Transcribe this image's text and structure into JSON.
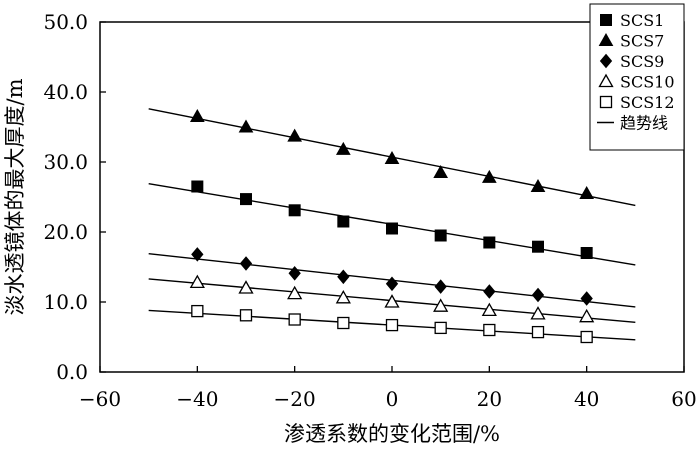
{
  "chart_data": {
    "type": "scatter",
    "xlabel": "渗透系数的变化范围/%",
    "ylabel": "淡水透镜体的最大厚度/m",
    "xlim": [
      -60,
      60
    ],
    "ylim": [
      0,
      50
    ],
    "x_ticks": [
      "−60",
      "−40",
      "−20",
      "0",
      "20",
      "40",
      "60"
    ],
    "y_ticks": [
      "0.0",
      "10.0",
      "20.0",
      "30.0",
      "40.0",
      "50.0"
    ],
    "x": [
      -40,
      -30,
      -20,
      -10,
      0,
      10,
      20,
      30,
      40
    ],
    "legend_position": "top-right",
    "grid": false,
    "series": [
      {
        "name": "SCS1",
        "marker": "square-filled",
        "values": [
          26.5,
          24.7,
          23.1,
          21.5,
          20.5,
          19.5,
          18.5,
          17.9,
          17.0
        ],
        "trend": {
          "x": [
            -50,
            50
          ],
          "y": [
            26.9,
            15.3
          ]
        }
      },
      {
        "name": "SCS7",
        "marker": "triangle-filled",
        "values": [
          36.5,
          35.0,
          33.7,
          31.8,
          30.5,
          28.5,
          27.8,
          26.5,
          25.5
        ],
        "trend": {
          "x": [
            -50,
            50
          ],
          "y": [
            37.6,
            23.8
          ]
        }
      },
      {
        "name": "SCS9",
        "marker": "diamond-filled",
        "values": [
          16.8,
          15.5,
          14.1,
          13.6,
          12.6,
          12.2,
          11.5,
          11.0,
          10.5
        ],
        "trend": {
          "x": [
            -50,
            50
          ],
          "y": [
            16.9,
            9.3
          ]
        }
      },
      {
        "name": "SCS10",
        "marker": "triangle-open",
        "values": [
          12.8,
          12.0,
          11.2,
          10.6,
          10.0,
          9.4,
          8.8,
          8.3,
          7.9
        ],
        "trend": {
          "x": [
            -50,
            50
          ],
          "y": [
            13.3,
            7.1
          ]
        }
      },
      {
        "name": "SCS12",
        "marker": "square-open",
        "values": [
          8.7,
          8.1,
          7.5,
          7.0,
          6.7,
          6.3,
          6.0,
          5.7,
          5.0
        ],
        "trend": {
          "x": [
            -50,
            50
          ],
          "y": [
            8.8,
            4.6
          ]
        }
      }
    ],
    "trend_legend_label": "趋势线"
  }
}
